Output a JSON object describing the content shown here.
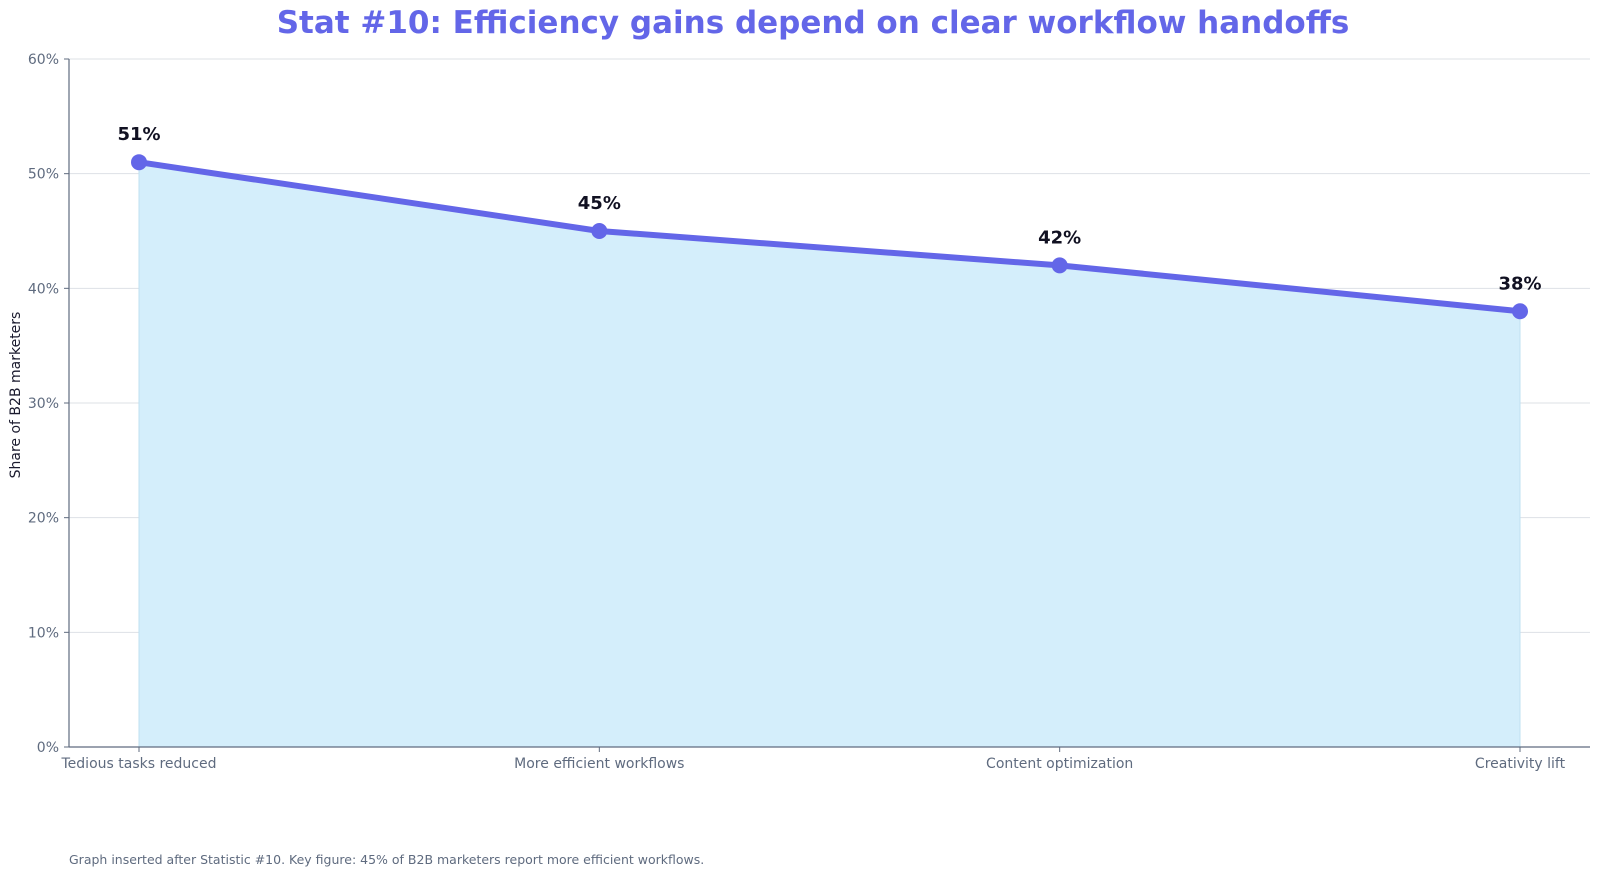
{
  "colors": {
    "accent": "#6366e8",
    "area_fill": "#d4eefb",
    "grid": "#dde1e6",
    "axis": "#5f6b7f"
  },
  "footnote": "Graph inserted after Statistic #10. Key figure: 45% of B2B marketers report more efficient workflows.",
  "chart_data": {
    "type": "area",
    "title": "Stat #10: Efficiency gains depend on clear workflow handoffs",
    "xlabel": "",
    "ylabel": "Share of B2B marketers",
    "categories": [
      "Tedious tasks reduced",
      "More efficient workflows",
      "Content optimization",
      "Creativity lift"
    ],
    "series": [
      {
        "values": [
          51,
          45,
          42,
          38
        ],
        "data_labels": [
          "51%",
          "45%",
          "42%",
          "38%"
        ]
      }
    ],
    "ylim": [
      0,
      60
    ],
    "yticks": [
      0,
      10,
      20,
      30,
      40,
      50,
      60
    ],
    "ytick_labels": [
      "0%",
      "10%",
      "20%",
      "30%",
      "40%",
      "50%",
      "60%"
    ],
    "grid": true,
    "legend": "none"
  }
}
